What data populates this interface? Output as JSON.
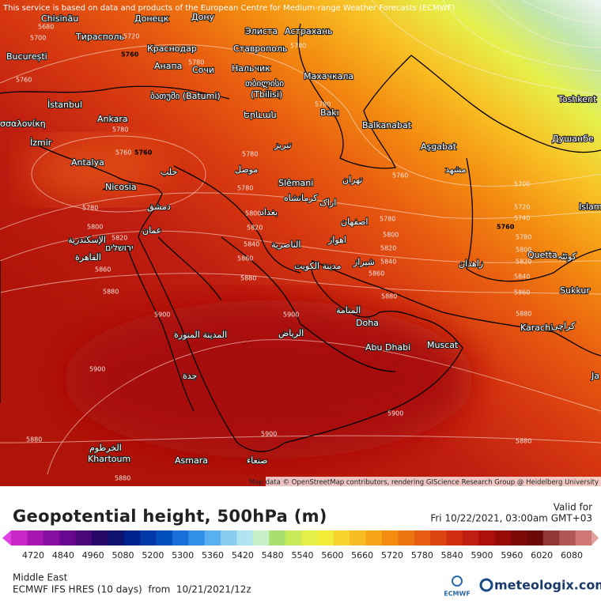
{
  "header": {
    "notice": "This service is based on data and products of the European Centre for Medium-range Weather Forecasts (ECMWF)"
  },
  "map": {
    "places": [
      "Chisinău",
      "Донецк",
      "Дону",
      "Элиста",
      "Астрахань",
      "Тирасполь",
      "Краснодар",
      "Ставрополь",
      "București",
      "Анапа",
      "Сочи",
      "Нальчик",
      "Махачкала",
      "თბილისი",
      "(Tbilisi)",
      "ბათუმი (Batumi)",
      "İstanbul",
      "Toshkent",
      "Երևան",
      "Bakı",
      "Ankara",
      "Balkanabat",
      "σσαλονίκη",
      "İzmir",
      "تبریز",
      "Aşgabat",
      "Душанбе",
      "Antalya",
      "حلب",
      "موصل",
      "Nicosia",
      "Slêmani",
      "تهران",
      "مشهد",
      "دمشق",
      "کرمانشاه",
      "اراک",
      "بغداد",
      "Islam",
      "عمان",
      "اصفهان",
      "الإسكندرية",
      "ירושלים",
      "اهواز",
      "الناصرية",
      "Quetta",
      "کوئٹہ",
      "القاهرة",
      "زاهدان",
      "شیراز",
      "مدينة الكويت",
      "Sukkur",
      "المنامة",
      "Doha",
      "Karachi",
      "کراچی",
      "المدينة المنورة",
      "الرياض",
      "Abu Dhabi",
      "Muscat",
      "جدة",
      "Ja",
      "الخرطوم",
      "Khartoum",
      "Asmara",
      "صنعاء"
    ],
    "contour_labels": [
      "5680",
      "5700",
      "5720",
      "5760",
      "5760",
      "5780",
      "5780",
      "5780",
      "5780",
      "5760",
      "5760",
      "5780",
      "5780",
      "5780",
      "5800",
      "5800",
      "5820",
      "5820",
      "5840",
      "5860",
      "5860",
      "5880",
      "5880",
      "5760",
      "5780",
      "5800",
      "5820",
      "5840",
      "5860",
      "5880",
      "5700",
      "5720",
      "5740",
      "5760",
      "5780",
      "5800",
      "5820",
      "5840",
      "5860",
      "5880",
      "5900",
      "5900",
      "5900",
      "5900",
      "5900",
      "5880",
      "5880",
      "5880"
    ],
    "attribution": "Map data © OpenStreetMap contributors, rendering GIScience Research Group @ Heidelberg University"
  },
  "legend": {
    "title": "Geopotential height, 500hPa (m)",
    "valid_label": "Valid for",
    "valid_time": "Fri 10/22/2021, 03:00am GMT+03",
    "ticks": [
      4720,
      4840,
      4960,
      5080,
      5200,
      5300,
      5360,
      5420,
      5480,
      5540,
      5600,
      5660,
      5720,
      5780,
      5840,
      5900,
      5960,
      6020,
      6080
    ],
    "colors": [
      "#e040e0",
      "#c828c8",
      "#a818b0",
      "#8810a0",
      "#680890",
      "#480878",
      "#280868",
      "#101070",
      "#002090",
      "#0038a8",
      "#0050c0",
      "#1870d8",
      "#3090e8",
      "#58b0f0",
      "#88ccf0",
      "#b0e4f0",
      "#c8f0c8",
      "#a8e070",
      "#c8ea58",
      "#e4f048",
      "#f4ec38",
      "#f8d430",
      "#f8bc24",
      "#f8a418",
      "#f48c10",
      "#ee7410",
      "#e65c10",
      "#dc4410",
      "#d02e10",
      "#c01e10",
      "#ac1008",
      "#960a08",
      "#7c0808",
      "#6c0a0a",
      "#903838",
      "#b05858",
      "#d07878",
      "#e0a0a0"
    ]
  },
  "footer": {
    "region": "Middle East",
    "model": "ECMWF IFS HRES (10 days)  from  10/21/2021/12z",
    "logo_left": "ECMWF",
    "logo_right": "meteologix.com"
  }
}
